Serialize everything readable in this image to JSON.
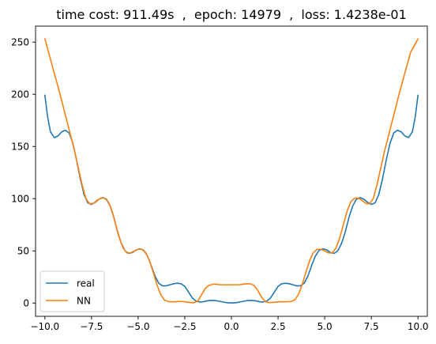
{
  "chart_data": {
    "type": "line",
    "title": "time cost: 911.49s  ,  epoch: 14979  ,  loss: 1.4238e-01",
    "xlabel": "",
    "ylabel": "",
    "xlim": [
      -10.5,
      10.5
    ],
    "ylim": [
      -12.7,
      265.3
    ],
    "xticks": [
      -10.0,
      -7.5,
      -5.0,
      -2.5,
      0.0,
      2.5,
      5.0,
      7.5,
      10.0
    ],
    "xtick_labels": [
      "−10.0",
      "−7.5",
      "−5.0",
      "−2.5",
      "0.0",
      "2.5",
      "5.0",
      "7.5",
      "10.0"
    ],
    "yticks": [
      0,
      50,
      100,
      150,
      200,
      250
    ],
    "ytick_labels": [
      "0",
      "50",
      "100",
      "150",
      "200",
      "250"
    ],
    "grid": false,
    "legend_position": "lower-left",
    "series": [
      {
        "name": "real",
        "color": "#1f77b4",
        "points": [
          [
            -10.0,
            199
          ],
          [
            -9.85,
            178
          ],
          [
            -9.7,
            164
          ],
          [
            -9.5,
            158.5
          ],
          [
            -9.3,
            160
          ],
          [
            -9.1,
            164
          ],
          [
            -8.9,
            165.5
          ],
          [
            -8.7,
            163
          ],
          [
            -8.5,
            153
          ],
          [
            -8.3,
            137
          ],
          [
            -8.1,
            119
          ],
          [
            -7.9,
            104
          ],
          [
            -7.7,
            96
          ],
          [
            -7.5,
            94.5
          ],
          [
            -7.3,
            96.5
          ],
          [
            -7.1,
            99.5
          ],
          [
            -6.9,
            101
          ],
          [
            -6.7,
            99.5
          ],
          [
            -6.5,
            93
          ],
          [
            -6.3,
            82
          ],
          [
            -6.1,
            68
          ],
          [
            -5.9,
            57
          ],
          [
            -5.7,
            50
          ],
          [
            -5.5,
            47.5
          ],
          [
            -5.3,
            48.5
          ],
          [
            -5.1,
            51
          ],
          [
            -4.9,
            52
          ],
          [
            -4.7,
            50.5
          ],
          [
            -4.5,
            45
          ],
          [
            -4.3,
            36
          ],
          [
            -4.1,
            26
          ],
          [
            -3.9,
            19
          ],
          [
            -3.7,
            16.5
          ],
          [
            -3.5,
            16.5
          ],
          [
            -3.3,
            17.5
          ],
          [
            -3.1,
            18.5
          ],
          [
            -2.9,
            19
          ],
          [
            -2.7,
            18.5
          ],
          [
            -2.5,
            16
          ],
          [
            -2.3,
            10.5
          ],
          [
            -2.1,
            5
          ],
          [
            -1.9,
            2
          ],
          [
            -1.7,
            1
          ],
          [
            -1.5,
            1.3
          ],
          [
            -1.3,
            2.1
          ],
          [
            -1.1,
            2.6
          ],
          [
            -0.9,
            2.5
          ],
          [
            -0.7,
            1.9
          ],
          [
            -0.5,
            1.2
          ],
          [
            -0.3,
            0.5
          ],
          [
            -0.1,
            0.1
          ],
          [
            0.1,
            0.1
          ],
          [
            0.3,
            0.5
          ],
          [
            0.5,
            1.2
          ],
          [
            0.7,
            1.9
          ],
          [
            0.9,
            2.5
          ],
          [
            1.1,
            2.6
          ],
          [
            1.3,
            2.1
          ],
          [
            1.5,
            1.3
          ],
          [
            1.7,
            1
          ],
          [
            1.9,
            2
          ],
          [
            2.1,
            5
          ],
          [
            2.3,
            10.5
          ],
          [
            2.5,
            16
          ],
          [
            2.7,
            18.5
          ],
          [
            2.9,
            19
          ],
          [
            3.1,
            18.5
          ],
          [
            3.3,
            17.5
          ],
          [
            3.5,
            16.5
          ],
          [
            3.7,
            16.5
          ],
          [
            3.9,
            19
          ],
          [
            4.1,
            26
          ],
          [
            4.3,
            36
          ],
          [
            4.5,
            45
          ],
          [
            4.7,
            50.5
          ],
          [
            4.9,
            52
          ],
          [
            5.1,
            51
          ],
          [
            5.3,
            48.5
          ],
          [
            5.5,
            47.5
          ],
          [
            5.7,
            50
          ],
          [
            5.9,
            57
          ],
          [
            6.1,
            68
          ],
          [
            6.3,
            82
          ],
          [
            6.5,
            93
          ],
          [
            6.7,
            99.5
          ],
          [
            6.9,
            101
          ],
          [
            7.1,
            99.5
          ],
          [
            7.3,
            96.5
          ],
          [
            7.5,
            94.5
          ],
          [
            7.7,
            96
          ],
          [
            7.9,
            104
          ],
          [
            8.1,
            119
          ],
          [
            8.3,
            137
          ],
          [
            8.5,
            153
          ],
          [
            8.7,
            163
          ],
          [
            8.9,
            165.5
          ],
          [
            9.1,
            164
          ],
          [
            9.3,
            160
          ],
          [
            9.5,
            158.5
          ],
          [
            9.7,
            164
          ],
          [
            9.85,
            178
          ],
          [
            10.0,
            199
          ]
        ]
      },
      {
        "name": "NN",
        "color": "#ff7f0e",
        "points": [
          [
            -10.0,
            253
          ],
          [
            -9.8,
            240
          ],
          [
            -9.6,
            227
          ],
          [
            -9.4,
            214
          ],
          [
            -9.2,
            201
          ],
          [
            -9.0,
            187
          ],
          [
            -8.8,
            173
          ],
          [
            -8.6,
            159
          ],
          [
            -8.4,
            145
          ],
          [
            -8.2,
            129
          ],
          [
            -8.0,
            113
          ],
          [
            -7.8,
            100
          ],
          [
            -7.6,
            95
          ],
          [
            -7.4,
            95.5
          ],
          [
            -7.2,
            98.5
          ],
          [
            -7.0,
            100.5
          ],
          [
            -6.8,
            100.5
          ],
          [
            -6.6,
            97
          ],
          [
            -6.4,
            88
          ],
          [
            -6.2,
            75
          ],
          [
            -6.0,
            62
          ],
          [
            -5.8,
            52.5
          ],
          [
            -5.6,
            48
          ],
          [
            -5.4,
            48
          ],
          [
            -5.2,
            50
          ],
          [
            -5.0,
            51.5
          ],
          [
            -4.8,
            51.5
          ],
          [
            -4.6,
            48.5
          ],
          [
            -4.4,
            41
          ],
          [
            -4.2,
            30
          ],
          [
            -4.0,
            18
          ],
          [
            -3.8,
            8.5
          ],
          [
            -3.6,
            3
          ],
          [
            -3.4,
            1.5
          ],
          [
            -3.2,
            1.2
          ],
          [
            -3.0,
            1.3
          ],
          [
            -2.8,
            1.5
          ],
          [
            -2.6,
            1.5
          ],
          [
            -2.4,
            1
          ],
          [
            -2.2,
            0.5
          ],
          [
            -2.0,
            0.3
          ],
          [
            -1.8,
            2
          ],
          [
            -1.6,
            8
          ],
          [
            -1.4,
            14
          ],
          [
            -1.2,
            17
          ],
          [
            -1.0,
            18
          ],
          [
            -0.8,
            18
          ],
          [
            -0.6,
            17.5
          ],
          [
            -0.4,
            17.5
          ],
          [
            -0.2,
            17.5
          ],
          [
            0.0,
            17.5
          ],
          [
            0.2,
            17.5
          ],
          [
            0.4,
            17.5
          ],
          [
            0.6,
            18
          ],
          [
            0.8,
            18.5
          ],
          [
            1.0,
            18.5
          ],
          [
            1.2,
            17
          ],
          [
            1.4,
            12.5
          ],
          [
            1.6,
            6
          ],
          [
            1.8,
            1.5
          ],
          [
            2.0,
            0.5
          ],
          [
            2.2,
            0.6
          ],
          [
            2.4,
            1
          ],
          [
            2.6,
            1.3
          ],
          [
            2.8,
            1.3
          ],
          [
            3.0,
            1.3
          ],
          [
            3.2,
            1.5
          ],
          [
            3.4,
            3
          ],
          [
            3.6,
            8.5
          ],
          [
            3.8,
            18
          ],
          [
            4.0,
            30
          ],
          [
            4.2,
            41
          ],
          [
            4.4,
            48.5
          ],
          [
            4.6,
            51.5
          ],
          [
            4.8,
            51.5
          ],
          [
            5.0,
            50
          ],
          [
            5.2,
            48
          ],
          [
            5.4,
            48
          ],
          [
            5.6,
            52.5
          ],
          [
            5.8,
            62
          ],
          [
            6.0,
            75
          ],
          [
            6.2,
            88
          ],
          [
            6.4,
            97
          ],
          [
            6.6,
            100.5
          ],
          [
            6.8,
            100.5
          ],
          [
            7.0,
            98.5
          ],
          [
            7.2,
            95.5
          ],
          [
            7.4,
            95
          ],
          [
            7.6,
            100
          ],
          [
            7.8,
            113
          ],
          [
            8.0,
            129
          ],
          [
            8.2,
            145
          ],
          [
            8.4,
            159
          ],
          [
            8.6,
            173
          ],
          [
            8.8,
            187
          ],
          [
            9.0,
            201
          ],
          [
            9.2,
            214
          ],
          [
            9.4,
            227
          ],
          [
            9.6,
            240
          ],
          [
            9.8,
            246.5
          ],
          [
            10.0,
            253
          ]
        ]
      }
    ]
  }
}
